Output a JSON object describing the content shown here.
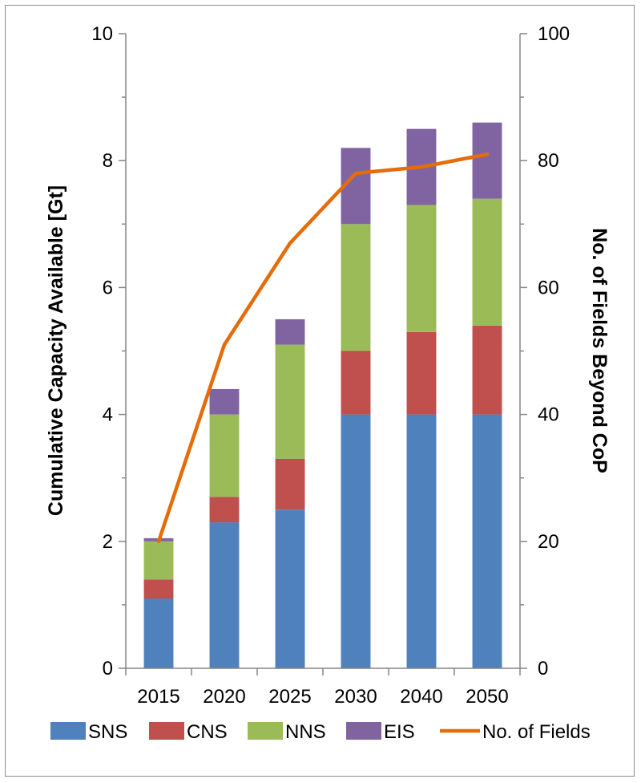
{
  "chart_data": {
    "type": "bar",
    "stacked": true,
    "categories": [
      "2015",
      "2020",
      "2025",
      "2030",
      "2040",
      "2050"
    ],
    "series": [
      {
        "name": "SNS",
        "color": "#4f81bd",
        "values": [
          1.1,
          2.3,
          2.5,
          4.0,
          4.0,
          4.0
        ]
      },
      {
        "name": "CNS",
        "color": "#c0504d",
        "values": [
          0.3,
          0.4,
          0.8,
          1.0,
          1.3,
          1.4
        ]
      },
      {
        "name": "NNS",
        "color": "#9bbb59",
        "values": [
          0.6,
          1.3,
          1.8,
          2.0,
          2.0,
          2.0
        ]
      },
      {
        "name": "EIS",
        "color": "#8064a2",
        "values": [
          0.05,
          0.4,
          0.4,
          1.2,
          1.2,
          1.2
        ]
      }
    ],
    "line_series": {
      "name": "No. of Fields",
      "color": "#e46c0a",
      "axis": "secondary",
      "values": [
        20,
        51,
        67,
        78,
        79,
        81
      ]
    },
    "ylabel": "Cumulative Capacity Available [Gt]",
    "y2label": "No. of Fields Beyond CoP",
    "ylim": [
      0,
      10
    ],
    "y2lim": [
      0,
      100
    ],
    "yticks": [
      "0",
      "2",
      "4",
      "6",
      "8",
      "10"
    ],
    "y2ticks": [
      "0",
      "20",
      "40",
      "60",
      "80",
      "100"
    ],
    "grid": false,
    "legend_position": "bottom"
  }
}
